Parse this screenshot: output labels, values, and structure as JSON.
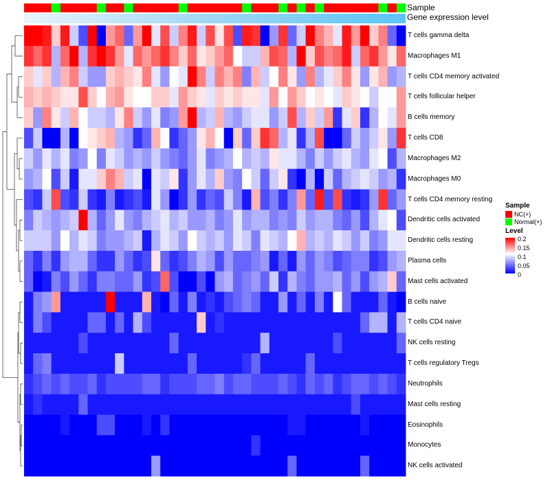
{
  "colors": {
    "nc": "#ff0000",
    "normal": "#00ff00",
    "gene_level_bar": "#5bc4f5",
    "low": "#0000ff",
    "mid": "#ffffff",
    "high": "#ff0000"
  },
  "annotations": {
    "sample_label": "Sample",
    "gene_label": "Gene expression level"
  },
  "legend": {
    "sample_title": "Sample",
    "sample_items": [
      "NC(+)",
      "Normal(+)"
    ],
    "level_title": "Level",
    "level_ticks": [
      "0.2",
      "0.15",
      "0.1",
      "0.05",
      "0"
    ]
  },
  "chart_data": {
    "type": "heatmap",
    "title": "",
    "rows": [
      "T cells gamma delta",
      "Macrophages M1",
      "T cells CD4 memory activated",
      "T cells follicular helper",
      "B cells memory",
      "T cells CD8",
      "Macrophages M2",
      "Macrophages M0",
      "T cells CD4 memory resting",
      "Dendritic cells activated",
      "Dendritic cells resting",
      "Plasma cells",
      "Mast cells activated",
      "B cells naive",
      "T cells CD4 naive",
      "NK cells resting",
      "T cells regulatory  Tregs",
      "Neutrophils",
      "Mast cells resting",
      "Eosinophils",
      "Monocytes",
      "NK cells activated"
    ],
    "sample_groups": [
      "NC",
      "NC",
      "NC",
      "Normal",
      "NC",
      "NC",
      "NC",
      "NC",
      "Normal",
      "NC",
      "NC",
      "Normal",
      "NC",
      "NC",
      "NC",
      "NC",
      "NC",
      "Normal",
      "NC",
      "NC",
      "NC",
      "NC",
      "NC",
      "NC",
      "Normal",
      "NC",
      "NC",
      "NC",
      "Normal",
      "NC",
      "Normal",
      "NC",
      "Normal",
      "NC",
      "NC",
      "NC",
      "NC",
      "NC",
      "NC",
      "Normal",
      "NC",
      "Normal"
    ],
    "level_range": [
      0,
      0.2
    ],
    "values": [
      [
        0.2,
        0.2,
        0.19,
        0.12,
        0.19,
        0.08,
        0.03,
        0.2,
        0.0,
        0.14,
        0.16,
        0.04,
        0.14,
        0.2,
        0.09,
        0.17,
        0.08,
        0.15,
        0.19,
        0.08,
        0.17,
        0.11,
        0.17,
        0.03,
        0.19,
        0.18,
        0.0,
        0.06,
        0.18,
        0.04,
        0.08,
        0.2,
        0.15,
        0.13,
        0.09,
        0.19,
        0.14,
        0.2,
        0.12,
        0.15,
        0.04,
        0.0
      ],
      [
        0.18,
        0.16,
        0.18,
        0.07,
        0.16,
        0.2,
        0.07,
        0.18,
        0.2,
        0.18,
        0.14,
        0.09,
        0.16,
        0.14,
        0.16,
        0.18,
        0.15,
        0.12,
        0.16,
        0.11,
        0.12,
        0.14,
        0.16,
        0.1,
        0.08,
        0.08,
        0.13,
        0.17,
        0.16,
        0.07,
        0.2,
        0.12,
        0.17,
        0.15,
        0.16,
        0.19,
        0.08,
        0.16,
        0.18,
        0.14,
        0.11,
        0.16
      ],
      [
        0.12,
        0.09,
        0.12,
        0.07,
        0.13,
        0.15,
        0.08,
        0.06,
        0.06,
        0.12,
        0.13,
        0.12,
        0.11,
        0.15,
        0.09,
        0.06,
        0.1,
        0.09,
        0.2,
        0.15,
        0.08,
        0.15,
        0.13,
        0.15,
        0.05,
        0.13,
        0.08,
        0.1,
        0.15,
        0.11,
        0.06,
        0.15,
        0.07,
        0.09,
        0.12,
        0.15,
        0.11,
        0.06,
        0.11,
        0.13,
        0.06,
        0.07
      ],
      [
        0.13,
        0.12,
        0.13,
        0.12,
        0.11,
        0.11,
        0.17,
        0.12,
        0.1,
        0.13,
        0.14,
        0.11,
        0.1,
        0.1,
        0.12,
        0.12,
        0.09,
        0.14,
        0.12,
        0.11,
        0.09,
        0.12,
        0.11,
        0.12,
        0.11,
        0.11,
        0.09,
        0.14,
        0.1,
        0.14,
        0.12,
        0.1,
        0.11,
        0.1,
        0.09,
        0.12,
        0.11,
        0.1,
        0.08,
        0.1,
        0.1,
        0.14
      ],
      [
        0.12,
        0.06,
        0.15,
        0.11,
        0.08,
        0.13,
        0.1,
        0.08,
        0.08,
        0.07,
        0.11,
        0.15,
        0.08,
        0.06,
        0.09,
        0.05,
        0.06,
        0.14,
        0.2,
        0.07,
        0.08,
        0.13,
        0.07,
        0.06,
        0.08,
        0.09,
        0.09,
        0.06,
        0.08,
        0.17,
        0.07,
        0.12,
        0.08,
        0.14,
        0.02,
        0.09,
        0.12,
        0.02,
        0.07,
        0.1,
        0.09,
        0.14
      ],
      [
        0.03,
        0.08,
        0.0,
        0.0,
        0.07,
        0.0,
        0.1,
        0.11,
        0.12,
        0.13,
        0.07,
        0.06,
        0.02,
        0.04,
        0.13,
        0.1,
        0.02,
        0.04,
        0.06,
        0.11,
        0.13,
        0.1,
        0.0,
        0.12,
        0.04,
        0.12,
        0.18,
        0.16,
        0.07,
        0.09,
        0.02,
        0.07,
        0.17,
        0.0,
        0.0,
        0.04,
        0.08,
        0.06,
        0.08,
        0.11,
        0.06,
        0.18
      ],
      [
        0.08,
        0.06,
        0.09,
        0.07,
        0.09,
        0.05,
        0.06,
        0.1,
        0.05,
        0.09,
        0.08,
        0.06,
        0.07,
        0.06,
        0.08,
        0.06,
        0.05,
        0.04,
        0.06,
        0.09,
        0.05,
        0.06,
        0.07,
        0.1,
        0.07,
        0.08,
        0.07,
        0.11,
        0.09,
        0.09,
        0.07,
        0.05,
        0.08,
        0.06,
        0.08,
        0.09,
        0.07,
        0.06,
        0.09,
        0.1,
        0.03,
        0.07
      ],
      [
        0.06,
        0.07,
        0.1,
        0.03,
        0.08,
        0.01,
        0.09,
        0.09,
        0.12,
        0.15,
        0.13,
        0.08,
        0.09,
        0.0,
        0.09,
        0.08,
        0.11,
        0.02,
        0.06,
        0.09,
        0.07,
        0.12,
        0.06,
        0.05,
        0.1,
        0.08,
        0.04,
        0.08,
        0.11,
        0.02,
        0.0,
        0.07,
        0.0,
        0.08,
        0.04,
        0.07,
        0.08,
        0.09,
        0.08,
        0.06,
        0.07,
        0.02
      ],
      [
        0.03,
        0.02,
        0.08,
        0.17,
        0.03,
        0.02,
        0.08,
        0.02,
        0.01,
        0.05,
        0.01,
        0.02,
        0.03,
        0.01,
        0.09,
        0.06,
        0.0,
        0.02,
        0.06,
        0.02,
        0.04,
        0.03,
        0.08,
        0.05,
        0.01,
        0.13,
        0.03,
        0.05,
        0.02,
        0.05,
        0.14,
        0.04,
        0.19,
        0.03,
        0.17,
        0.02,
        0.01,
        0.02,
        0.06,
        0.18,
        0.04,
        0.06
      ],
      [
        0.05,
        0.08,
        0.07,
        0.06,
        0.07,
        0.08,
        0.2,
        0.07,
        0.04,
        0.06,
        0.09,
        0.06,
        0.05,
        0.07,
        0.08,
        0.09,
        0.07,
        0.08,
        0.06,
        0.06,
        0.07,
        0.05,
        0.06,
        0.09,
        0.06,
        0.07,
        0.07,
        0.05,
        0.06,
        0.05,
        0.08,
        0.06,
        0.07,
        0.07,
        0.05,
        0.04,
        0.06,
        0.03,
        0.07,
        0.09,
        0.1,
        0.03
      ],
      [
        0.08,
        0.08,
        0.08,
        0.06,
        0.1,
        0.07,
        0.09,
        0.08,
        0.05,
        0.06,
        0.06,
        0.07,
        0.08,
        0.01,
        0.07,
        0.09,
        0.08,
        0.06,
        0.1,
        0.08,
        0.07,
        0.08,
        0.06,
        0.09,
        0.08,
        0.05,
        0.09,
        0.08,
        0.07,
        0.1,
        0.13,
        0.07,
        0.08,
        0.07,
        0.09,
        0.08,
        0.06,
        0.08,
        0.05,
        0.06,
        0.09,
        0.09
      ],
      [
        0.04,
        0.02,
        0.05,
        0.02,
        0.06,
        0.07,
        0.07,
        0.04,
        0.02,
        0.02,
        0.06,
        0.04,
        0.02,
        0.03,
        0.11,
        0.04,
        0.02,
        0.03,
        0.05,
        0.07,
        0.06,
        0.03,
        0.06,
        0.04,
        0.04,
        0.05,
        0.06,
        0.01,
        0.04,
        0.01,
        0.06,
        0.04,
        0.06,
        0.05,
        0.03,
        0.04,
        0.05,
        0.05,
        0.02,
        0.03,
        0.06,
        0.07
      ],
      [
        0.04,
        0.0,
        0.01,
        0.05,
        0.03,
        0.06,
        0.04,
        0.02,
        0.05,
        0.05,
        0.04,
        0.04,
        0.06,
        0.02,
        0.03,
        0.16,
        0.03,
        0.0,
        0.0,
        0.03,
        0.0,
        0.06,
        0.07,
        0.04,
        0.05,
        0.06,
        0.04,
        0.08,
        0.02,
        0.07,
        0.05,
        0.04,
        0.06,
        0.06,
        0.07,
        0.04,
        0.06,
        0.03,
        0.06,
        0.07,
        0.12,
        0.04
      ],
      [
        0.01,
        0.05,
        0.06,
        0.14,
        0.01,
        0.01,
        0.01,
        0.01,
        0.01,
        0.2,
        0.01,
        0.01,
        0.01,
        0.13,
        0.01,
        0.0,
        0.04,
        0.01,
        0.05,
        0.01,
        0.02,
        0.01,
        0.03,
        0.04,
        0.05,
        0.04,
        0.01,
        0.01,
        0.06,
        0.01,
        0.04,
        0.01,
        0.05,
        0.01,
        0.1,
        0.04,
        0.01,
        0.01,
        0.01,
        0.04,
        0.01,
        0.0
      ],
      [
        0.01,
        0.05,
        0.03,
        0.01,
        0.01,
        0.01,
        0.01,
        0.04,
        0.04,
        0.01,
        0.04,
        0.01,
        0.07,
        0.03,
        0.01,
        0.01,
        0.01,
        0.01,
        0.01,
        0.12,
        0.01,
        0.02,
        0.01,
        0.01,
        0.01,
        0.01,
        0.01,
        0.01,
        0.01,
        0.01,
        0.01,
        0.01,
        0.01,
        0.01,
        0.01,
        0.01,
        0.01,
        0.04,
        0.07,
        0.07,
        0.01,
        0.07
      ],
      [
        0.01,
        0.01,
        0.01,
        0.01,
        0.01,
        0.01,
        0.03,
        0.01,
        0.01,
        0.01,
        0.01,
        0.01,
        0.01,
        0.01,
        0.01,
        0.01,
        0.04,
        0.01,
        0.01,
        0.01,
        0.01,
        0.01,
        0.01,
        0.01,
        0.01,
        0.01,
        0.07,
        0.01,
        0.01,
        0.01,
        0.01,
        0.01,
        0.01,
        0.01,
        0.03,
        0.01,
        0.01,
        0.01,
        0.01,
        0.01,
        0.01,
        0.04
      ],
      [
        0.01,
        0.04,
        0.05,
        0.01,
        0.01,
        0.01,
        0.01,
        0.01,
        0.01,
        0.01,
        0.08,
        0.01,
        0.01,
        0.01,
        0.01,
        0.01,
        0.01,
        0.01,
        0.04,
        0.01,
        0.01,
        0.01,
        0.01,
        0.01,
        0.02,
        0.04,
        0.01,
        0.01,
        0.01,
        0.01,
        0.01,
        0.04,
        0.01,
        0.01,
        0.01,
        0.01,
        0.01,
        0.01,
        0.01,
        0.01,
        0.01,
        0.01
      ],
      [
        0.02,
        0.03,
        0.04,
        0.03,
        0.04,
        0.03,
        0.03,
        0.04,
        0.02,
        0.03,
        0.03,
        0.03,
        0.03,
        0.04,
        0.04,
        0.02,
        0.03,
        0.03,
        0.03,
        0.04,
        0.04,
        0.05,
        0.03,
        0.04,
        0.04,
        0.03,
        0.03,
        0.03,
        0.04,
        0.03,
        0.02,
        0.04,
        0.03,
        0.04,
        0.02,
        0.03,
        0.04,
        0.04,
        0.03,
        0.04,
        0.03,
        0.02
      ],
      [
        0.01,
        0.02,
        0.01,
        0.01,
        0.01,
        0.01,
        0.04,
        0.01,
        0.01,
        0.01,
        0.01,
        0.01,
        0.01,
        0.01,
        0.01,
        0.01,
        0.01,
        0.01,
        0.01,
        0.01,
        0.01,
        0.01,
        0.01,
        0.01,
        0.01,
        0.01,
        0.01,
        0.01,
        0.01,
        0.01,
        0.01,
        0.01,
        0.01,
        0.01,
        0.01,
        0.01,
        0.03,
        0.01,
        0.01,
        0.01,
        0.01,
        0.01
      ],
      [
        0.0,
        0.0,
        0.0,
        0.0,
        0.01,
        0.0,
        0.0,
        0.0,
        0.03,
        0.03,
        0.0,
        0.0,
        0.0,
        0.01,
        0.0,
        0.02,
        0.0,
        0.0,
        0.0,
        0.0,
        0.0,
        0.0,
        0.0,
        0.0,
        0.0,
        0.0,
        0.0,
        0.0,
        0.0,
        0.01,
        0.01,
        0.0,
        0.0,
        0.0,
        0.0,
        0.0,
        0.0,
        0.01,
        0.0,
        0.0,
        0.0,
        0.0
      ],
      [
        0.0,
        0.0,
        0.0,
        0.0,
        0.0,
        0.0,
        0.0,
        0.0,
        0.0,
        0.0,
        0.0,
        0.0,
        0.0,
        0.0,
        0.0,
        0.0,
        0.0,
        0.0,
        0.0,
        0.0,
        0.0,
        0.0,
        0.0,
        0.0,
        0.0,
        0.02,
        0.0,
        0.0,
        0.0,
        0.0,
        0.0,
        0.0,
        0.0,
        0.0,
        0.0,
        0.0,
        0.0,
        0.0,
        0.0,
        0.0,
        0.0,
        0.0
      ],
      [
        0.0,
        0.0,
        0.0,
        0.0,
        0.0,
        0.0,
        0.0,
        0.0,
        0.0,
        0.0,
        0.0,
        0.0,
        0.0,
        0.0,
        0.06,
        0.0,
        0.0,
        0.0,
        0.0,
        0.0,
        0.0,
        0.0,
        0.0,
        0.0,
        0.0,
        0.0,
        0.0,
        0.0,
        0.0,
        0.04,
        0.0,
        0.0,
        0.0,
        0.0,
        0.0,
        0.0,
        0.0,
        0.04,
        0.0,
        0.0,
        0.0,
        0.0
      ]
    ]
  }
}
